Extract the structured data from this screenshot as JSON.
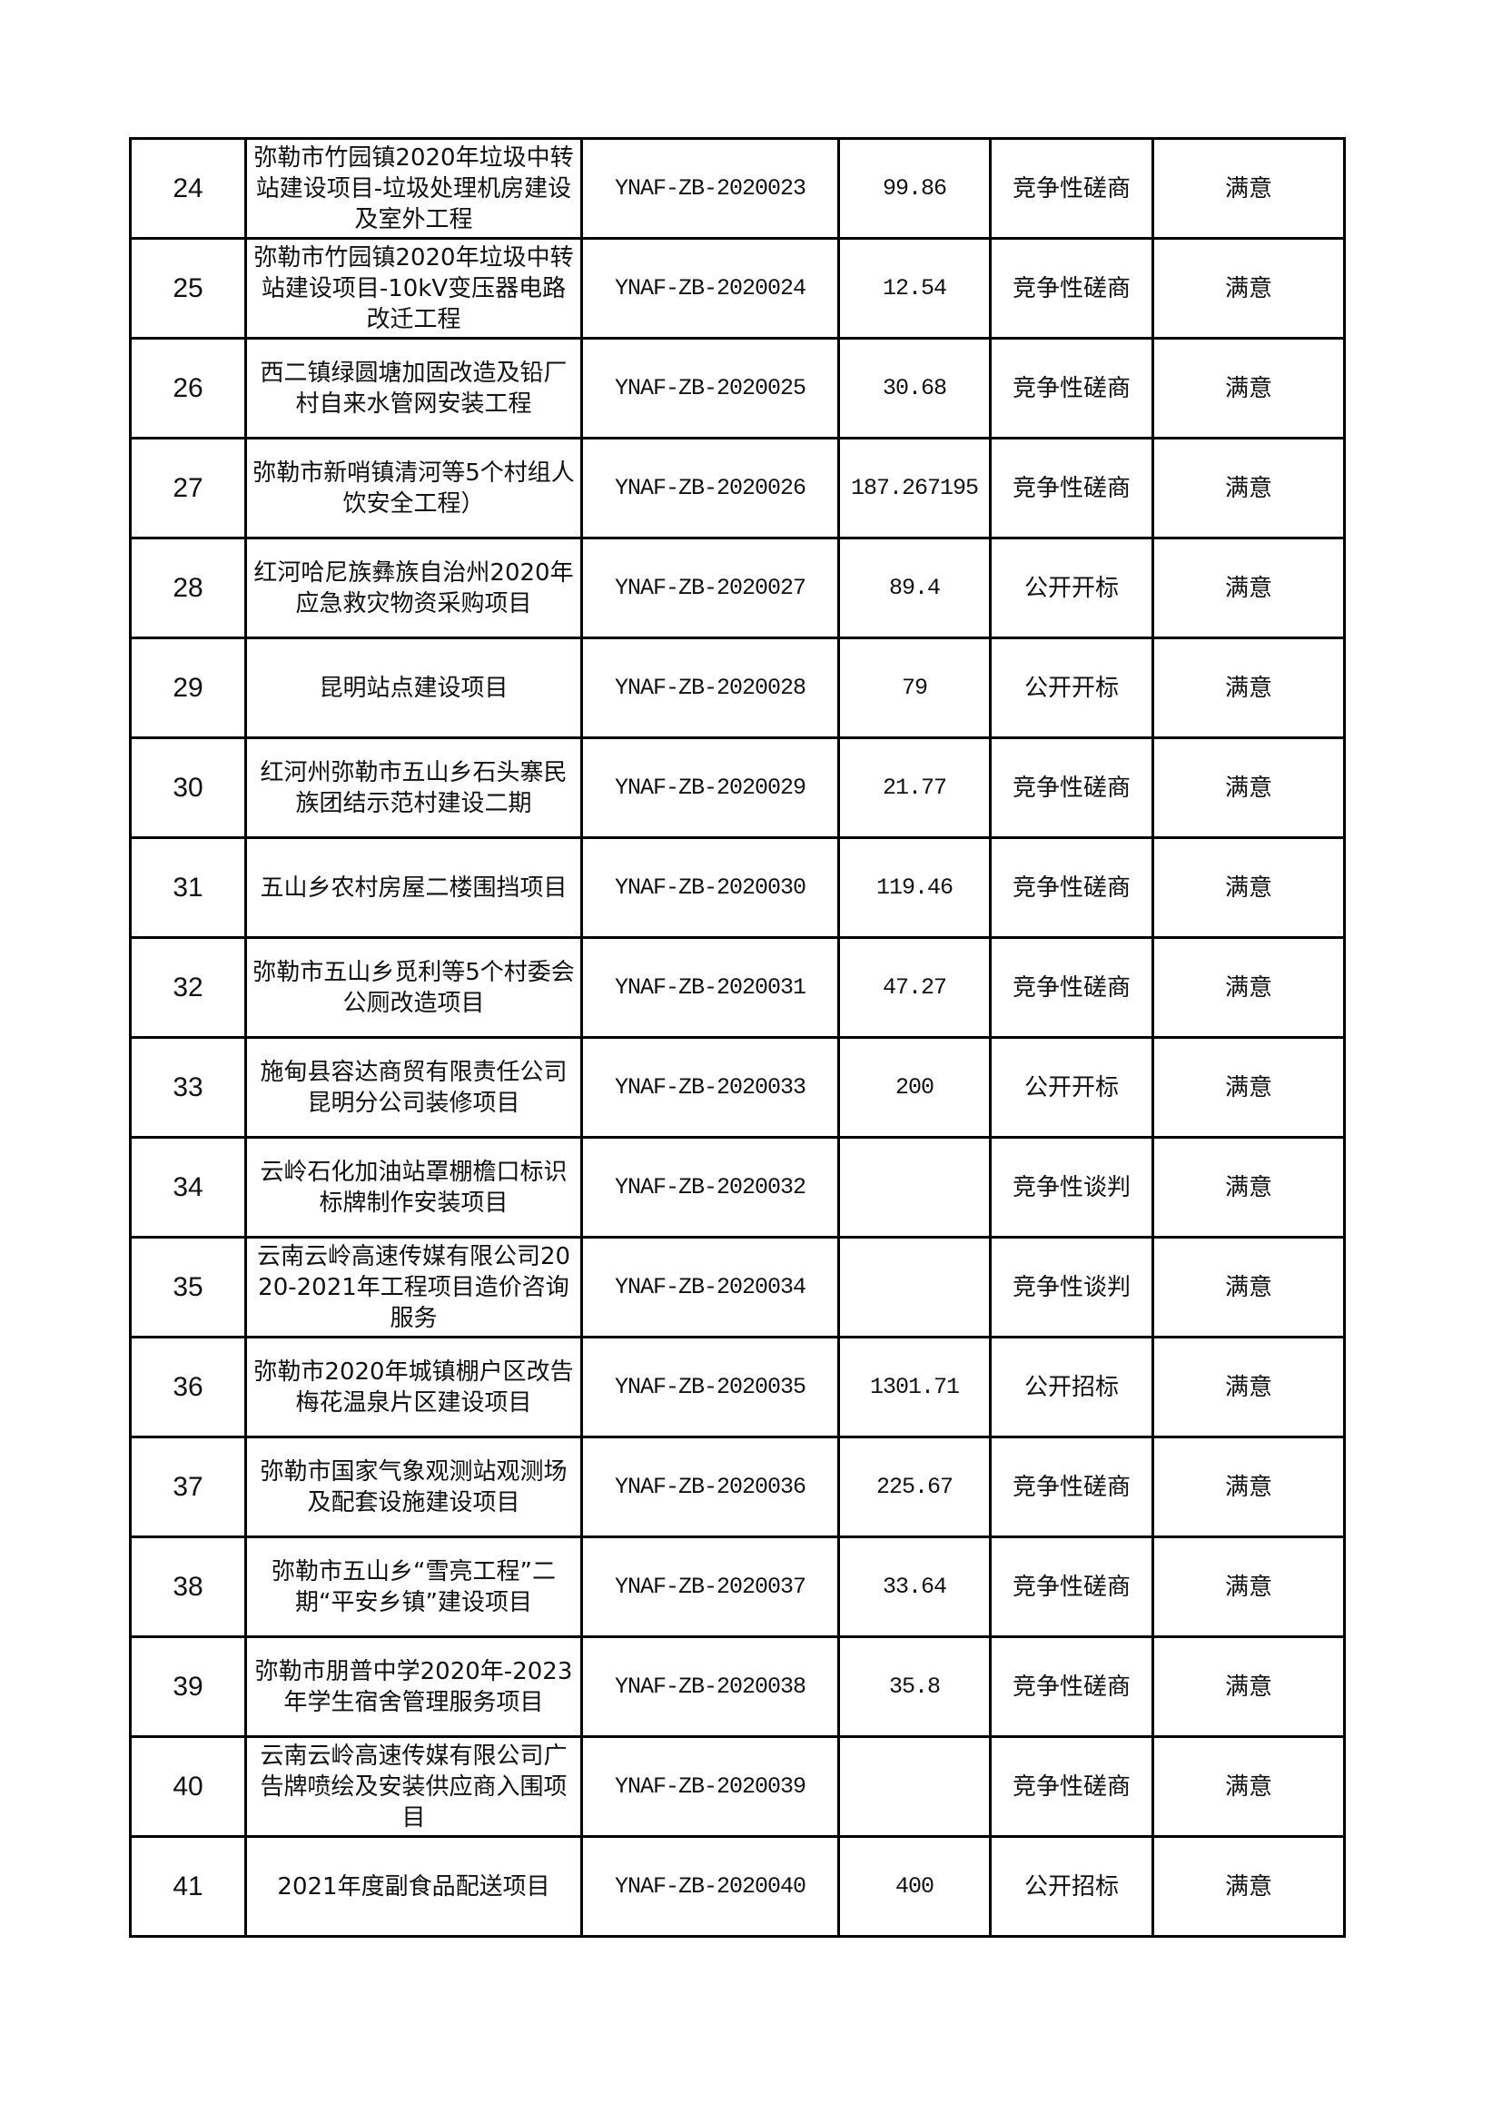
{
  "table": {
    "rows": [
      {
        "no": "24",
        "project": "弥勒市竹园镇2020年垃圾中转站建设项目-垃圾处理机房建设及室外工程",
        "code": "YNAF-ZB-2020023",
        "amount": "99.86",
        "method": "竞争性磋商",
        "evaluation": "满意"
      },
      {
        "no": "25",
        "project": "弥勒市竹园镇2020年垃圾中转站建设项目-10kV变压器电路改迁工程",
        "code": "YNAF-ZB-2020024",
        "amount": "12.54",
        "method": "竞争性磋商",
        "evaluation": "满意"
      },
      {
        "no": "26",
        "project": "西二镇绿圆塘加固改造及铅厂村自来水管网安装工程",
        "code": "YNAF-ZB-2020025",
        "amount": "30.68",
        "method": "竞争性磋商",
        "evaluation": "满意"
      },
      {
        "no": "27",
        "project": "弥勒市新哨镇清河等5个村组人饮安全工程）",
        "code": "YNAF-ZB-2020026",
        "amount": "187.267195",
        "method": "竞争性磋商",
        "evaluation": "满意"
      },
      {
        "no": "28",
        "project": "红河哈尼族彝族自治州2020年应急救灾物资采购项目",
        "code": "YNAF-ZB-2020027",
        "amount": "89.4",
        "method": "公开开标",
        "evaluation": "满意"
      },
      {
        "no": "29",
        "project": "昆明站点建设项目",
        "code": "YNAF-ZB-2020028",
        "amount": "79",
        "method": "公开开标",
        "evaluation": "满意"
      },
      {
        "no": "30",
        "project": "红河州弥勒市五山乡石头寨民族团结示范村建设二期",
        "code": "YNAF-ZB-2020029",
        "amount": "21.77",
        "method": "竞争性磋商",
        "evaluation": "满意"
      },
      {
        "no": "31",
        "project": "五山乡农村房屋二楼围挡项目",
        "code": "YNAF-ZB-2020030",
        "amount": "119.46",
        "method": "竞争性磋商",
        "evaluation": "满意"
      },
      {
        "no": "32",
        "project": "弥勒市五山乡觅利等5个村委会公厕改造项目",
        "code": "YNAF-ZB-2020031",
        "amount": "47.27",
        "method": "竞争性磋商",
        "evaluation": "满意"
      },
      {
        "no": "33",
        "project": "施甸县容达商贸有限责任公司昆明分公司装修项目",
        "code": "YNAF-ZB-2020033",
        "amount": "200",
        "method": "公开开标",
        "evaluation": "满意"
      },
      {
        "no": "34",
        "project": "云岭石化加油站罩棚檐口标识标牌制作安装项目",
        "code": "YNAF-ZB-2020032",
        "amount": "",
        "method": "竞争性谈判",
        "evaluation": "满意"
      },
      {
        "no": "35",
        "project": "云南云岭高速传媒有限公司2020-2021年工程项目造价咨询服务",
        "code": "YNAF-ZB-2020034",
        "amount": "",
        "method": "竞争性谈判",
        "evaluation": "满意"
      },
      {
        "no": "36",
        "project": "弥勒市2020年城镇棚户区改告梅花温泉片区建设项目",
        "code": "YNAF-ZB-2020035",
        "amount": "1301.71",
        "method": "公开招标",
        "evaluation": "满意"
      },
      {
        "no": "37",
        "project": "弥勒市国家气象观测站观测场及配套设施建设项目",
        "code": "YNAF-ZB-2020036",
        "amount": "225.67",
        "method": "竞争性磋商",
        "evaluation": "满意"
      },
      {
        "no": "38",
        "project": "弥勒市五山乡“雪亮工程”二期“平安乡镇”建设项目",
        "code": "YNAF-ZB-2020037",
        "amount": "33.64",
        "method": "竞争性磋商",
        "evaluation": "满意"
      },
      {
        "no": "39",
        "project": "弥勒市朋普中学2020年-2023年学生宿舍管理服务项目",
        "code": "YNAF-ZB-2020038",
        "amount": "35.8",
        "method": "竞争性磋商",
        "evaluation": "满意"
      },
      {
        "no": "40",
        "project": "云南云岭高速传媒有限公司广告牌喷绘及安装供应商入围项目",
        "code": "YNAF-ZB-2020039",
        "amount": "",
        "method": "竞争性磋商",
        "evaluation": "满意"
      },
      {
        "no": "41",
        "project": "2021年度副食品配送项目",
        "code": "YNAF-ZB-2020040",
        "amount": "400",
        "method": "公开招标",
        "evaluation": "满意"
      }
    ]
  }
}
